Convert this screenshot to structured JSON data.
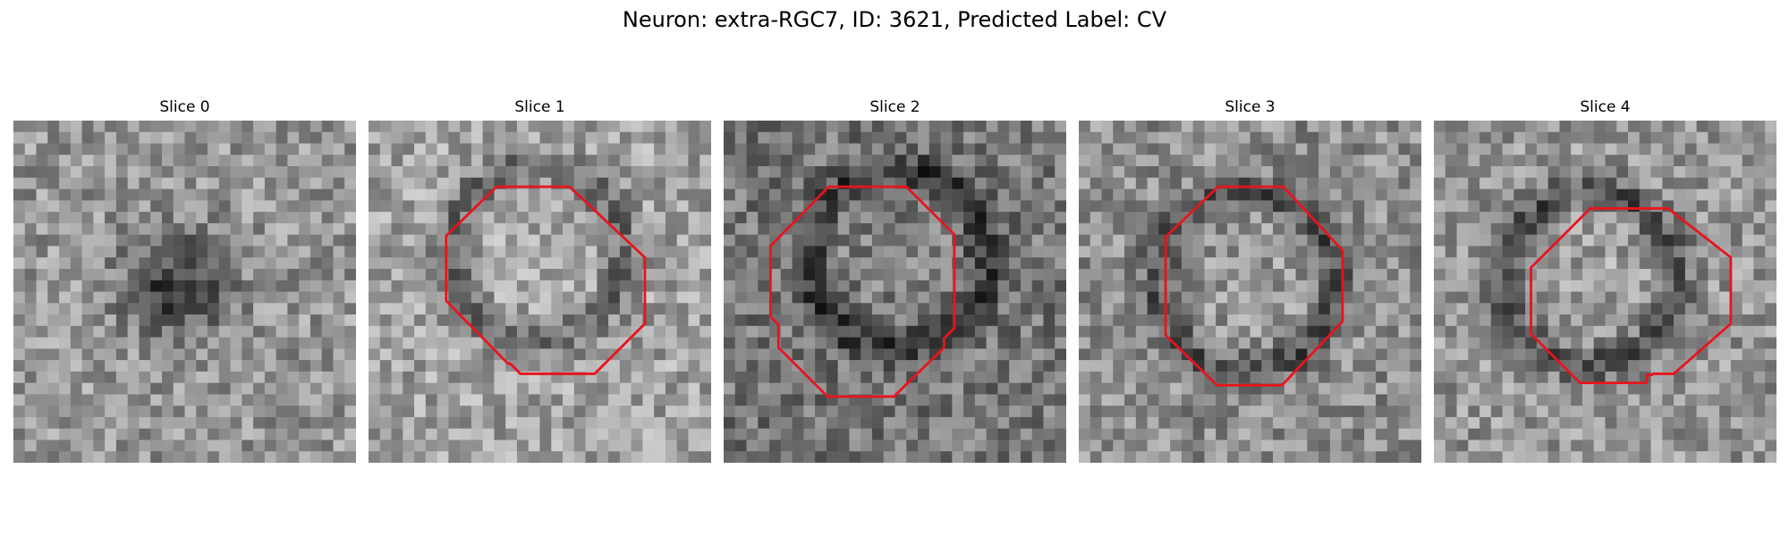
{
  "figure": {
    "title": "Neuron: extra-RGC7, ID: 3621, Predicted Label: CV"
  },
  "colors": {
    "contour": "#e8141c"
  },
  "panels": [
    {
      "title": "Slice 0",
      "has_contour": false
    },
    {
      "title": "Slice 1",
      "has_contour": true
    },
    {
      "title": "Slice 2",
      "has_contour": true
    },
    {
      "title": "Slice 3",
      "has_contour": true
    },
    {
      "title": "Slice 4",
      "has_contour": true
    }
  ]
}
